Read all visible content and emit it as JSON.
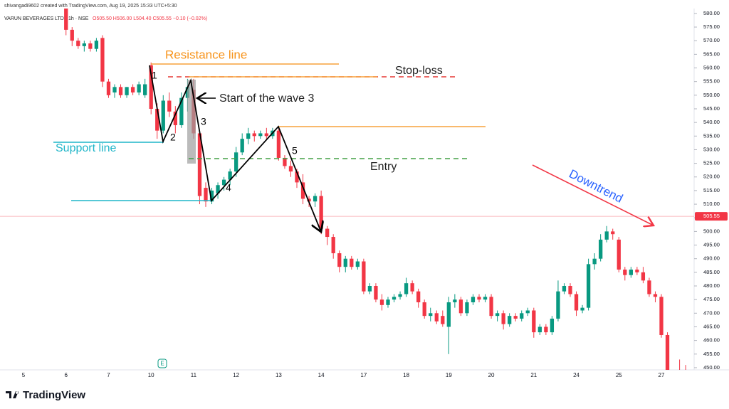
{
  "header": {
    "credit": "shivangadi9602 created with TradingView.com, Aug 19, 2025 15:33 UTC+5:30",
    "symbol": "VARUN BEVERAGES LTD · 1h · NSE",
    "ohlc": "O505.50 H506.00 L504.40 C505.55 −0.10 (−0.02%)"
  },
  "footer": {
    "brand": "TradingView"
  },
  "annotations": {
    "resistance": "Resistance line",
    "stop_loss": "Stop-loss",
    "wave3": "Start of the wave 3",
    "support": "Support line",
    "entry": "Entry",
    "downtrend": "Downtrend",
    "waves": [
      "1",
      "2",
      "3",
      "4",
      "5"
    ],
    "earnings_marker": "E"
  },
  "chart_data": {
    "type": "candlestick",
    "up_color": "#089981",
    "down_color": "#f23645",
    "categories": [
      "5",
      null,
      null,
      null,
      null,
      null,
      null,
      "6",
      null,
      null,
      null,
      null,
      null,
      null,
      "7",
      null,
      null,
      null,
      null,
      null,
      null,
      "10",
      null,
      null,
      null,
      null,
      null,
      null,
      "11",
      null,
      null,
      null,
      null,
      null,
      null,
      "12",
      null,
      null,
      null,
      null,
      null,
      null,
      "13",
      null,
      null,
      null,
      null,
      null,
      null,
      "14",
      null,
      null,
      null,
      null,
      null,
      null,
      "17",
      null,
      null,
      null,
      null,
      null,
      null,
      "18",
      null,
      null,
      null,
      null,
      null,
      null,
      "19",
      null,
      null,
      null,
      null,
      null,
      null,
      "20",
      null,
      null,
      null,
      null,
      null,
      null,
      "21",
      null,
      null,
      null,
      null,
      null,
      null,
      "24",
      null,
      null,
      null,
      null,
      null,
      null,
      "25",
      null,
      null,
      null,
      null,
      null,
      null,
      "27",
      null,
      null,
      null,
      null
    ],
    "open": [
      null,
      null,
      null,
      null,
      null,
      null,
      null,
      582,
      574,
      570,
      568,
      569,
      567,
      571,
      555,
      551,
      553,
      550,
      553,
      551,
      550,
      561,
      545,
      537,
      548,
      544,
      539,
      549,
      552,
      536,
      516,
      511,
      514,
      517,
      519,
      522,
      529,
      534,
      536,
      535,
      536,
      535,
      537,
      527,
      524,
      522,
      518,
      512,
      511,
      513,
      501,
      498,
      492,
      487,
      490,
      487,
      489,
      478,
      480,
      475,
      473,
      475,
      476,
      477,
      481,
      478,
      474,
      469,
      470,
      469,
      465,
      474,
      475,
      470,
      474,
      476,
      475,
      476,
      469,
      470,
      466,
      469,
      468,
      470,
      471,
      463,
      465,
      463,
      468,
      478,
      480,
      477,
      471,
      472,
      488,
      490,
      497,
      500,
      497,
      486,
      484,
      486,
      485,
      482,
      477,
      476,
      462,
      448,
      449,
      448
    ],
    "high": [
      null,
      null,
      null,
      null,
      null,
      null,
      null,
      583,
      575,
      571,
      570,
      570,
      571,
      572,
      556,
      554,
      554,
      553,
      554,
      555,
      556,
      562,
      547,
      550,
      551,
      546,
      551,
      556,
      556,
      537,
      518,
      516,
      518,
      520,
      523,
      531,
      536,
      538,
      537,
      537,
      538,
      538,
      538,
      528,
      526,
      523,
      521,
      513,
      514,
      515,
      502,
      499,
      493,
      491,
      491,
      490,
      490,
      481,
      481,
      477,
      476,
      477,
      478,
      483,
      482,
      479,
      475,
      472,
      471,
      471,
      476,
      477,
      476,
      475,
      477,
      477,
      477,
      477,
      471,
      471,
      470,
      470,
      471,
      472,
      472,
      466,
      466,
      469,
      482,
      481,
      481,
      478,
      473,
      490,
      492,
      499,
      502,
      501,
      498,
      487,
      487,
      487,
      487,
      483,
      478,
      477,
      463,
      449,
      453,
      451
    ],
    "low": [
      null,
      null,
      null,
      null,
      null,
      null,
      null,
      572,
      568,
      567,
      566,
      566,
      566,
      553,
      549,
      549,
      549,
      549,
      550,
      550,
      549,
      543,
      534,
      536,
      542,
      536,
      538,
      544,
      534,
      510,
      509,
      510,
      512,
      515,
      517,
      520,
      528,
      532,
      533,
      534,
      534,
      534,
      526,
      523,
      520,
      516,
      510,
      509,
      509,
      499,
      495,
      490,
      485,
      485,
      486,
      486,
      477,
      477,
      474,
      471,
      472,
      474,
      475,
      476,
      477,
      472,
      468,
      467,
      466,
      465,
      455,
      472,
      469,
      469,
      473,
      474,
      474,
      468,
      467,
      464,
      465,
      467,
      467,
      469,
      461,
      462,
      462,
      462,
      467,
      477,
      476,
      469,
      470,
      471,
      486,
      489,
      496,
      497,
      485,
      482,
      483,
      484,
      481,
      476,
      474,
      461,
      447,
      446,
      447,
      446
    ],
    "close": [
      null,
      null,
      null,
      null,
      null,
      null,
      null,
      574,
      570,
      568,
      569,
      567,
      570,
      555,
      550,
      553,
      550,
      553,
      551,
      554,
      554,
      545,
      537,
      548,
      544,
      539,
      549,
      553,
      536,
      513,
      511,
      515,
      517,
      519,
      522,
      529,
      534,
      536,
      535,
      536,
      535,
      537,
      527,
      524,
      522,
      518,
      512,
      511,
      513,
      501,
      498,
      492,
      487,
      490,
      487,
      489,
      478,
      480,
      475,
      473,
      475,
      476,
      477,
      481,
      478,
      474,
      469,
      470,
      467,
      466,
      474,
      475,
      470,
      474,
      476,
      475,
      476,
      469,
      470,
      466,
      469,
      468,
      470,
      471,
      463,
      465,
      463,
      468,
      478,
      480,
      477,
      471,
      472,
      488,
      490,
      497,
      500,
      499,
      486,
      484,
      486,
      485,
      482,
      477,
      476,
      462,
      448,
      447,
      448,
      447
    ],
    "ylim": [
      449.2,
      581.8
    ],
    "yticks": [
      {
        "value": 450,
        "label": "450.00"
      },
      {
        "value": 455,
        "label": "455.00"
      },
      {
        "value": 460,
        "label": "460.00"
      },
      {
        "value": 465,
        "label": "465.00"
      },
      {
        "value": 470,
        "label": "470.00"
      },
      {
        "value": 475,
        "label": "475.00"
      },
      {
        "value": 480,
        "label": "480.00"
      },
      {
        "value": 485,
        "label": "485.00"
      },
      {
        "value": 490,
        "label": "490.00"
      },
      {
        "value": 495,
        "label": "495.00"
      },
      {
        "value": 500,
        "label": "500.00"
      },
      {
        "value": 505,
        "label": "505.00"
      },
      {
        "value": 510,
        "label": "510.00"
      },
      {
        "value": 515,
        "label": "515.00"
      },
      {
        "value": 520,
        "label": "520.00"
      },
      {
        "value": 525,
        "label": "525.00"
      },
      {
        "value": 530,
        "label": "530.00"
      },
      {
        "value": 535,
        "label": "535.00"
      },
      {
        "value": 540,
        "label": "540.00"
      },
      {
        "value": 545,
        "label": "545.00"
      },
      {
        "value": 550,
        "label": "550.00"
      },
      {
        "value": 555,
        "label": "555.00"
      },
      {
        "value": 560,
        "label": "560.00"
      },
      {
        "value": 565,
        "label": "565.00"
      },
      {
        "value": 570,
        "label": "570.00"
      },
      {
        "value": 575,
        "label": "575.00"
      },
      {
        "value": 580,
        "label": "580.00"
      }
    ],
    "last_price": {
      "value": 505.55,
      "label": "505.55"
    },
    "last_price_color": "#f23645",
    "grid": false
  }
}
